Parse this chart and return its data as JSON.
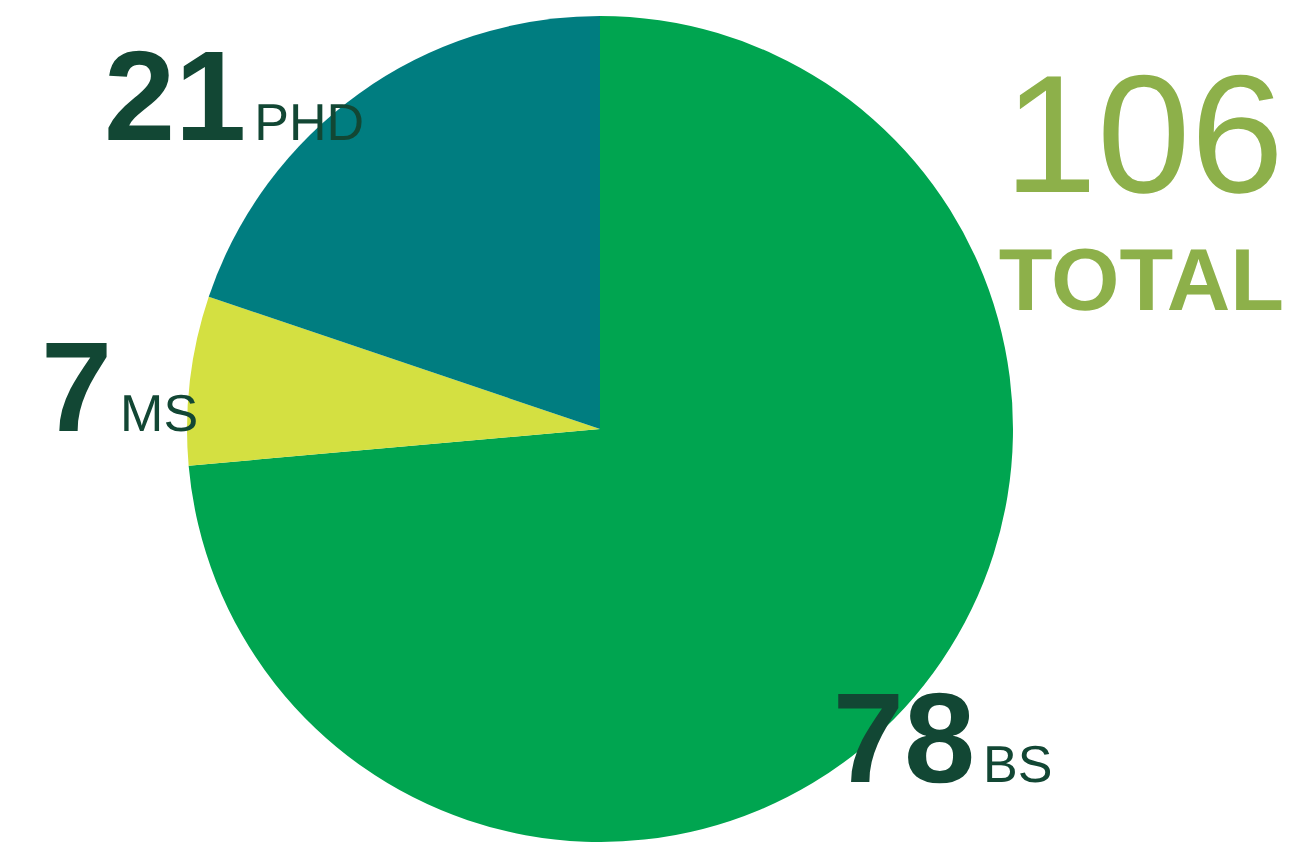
{
  "chart_data": {
    "type": "pie",
    "categories": [
      "BS",
      "MS",
      "PHD"
    ],
    "values": [
      78,
      7,
      21
    ],
    "colors": [
      "#00a550",
      "#d4e041",
      "#007d80"
    ],
    "data_labels": true,
    "annotations": [
      "106",
      "TOTAL"
    ],
    "legend": false
  }
}
